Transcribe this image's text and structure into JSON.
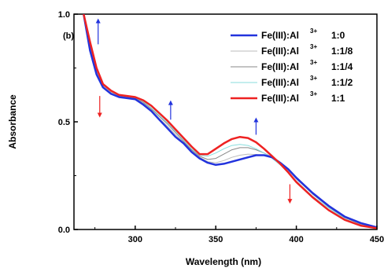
{
  "chart_data": {
    "type": "line",
    "panel_label": "(b)",
    "xlabel": "Wavelength (nm)",
    "ylabel": "Absorbance",
    "xlim": [
      262,
      450
    ],
    "ylim": [
      0.0,
      1.0
    ],
    "x_ticks": [
      300,
      350,
      400,
      450
    ],
    "x_tick_labels": [
      "300",
      "350",
      "400",
      "450"
    ],
    "y_ticks": [
      0.0,
      0.5,
      1.0
    ],
    "y_tick_labels": [
      "0.0",
      "0.5",
      "1.0"
    ],
    "legend_position": "top-right",
    "series": [
      {
        "name": "Fe(III):Al3+ 1:0",
        "legend_main": "Fe(III):Al",
        "legend_sup": "3+",
        "legend_ratio": "1:0",
        "color": "#2233dd",
        "width": 2.5,
        "x": [
          268,
          272,
          276,
          280,
          285,
          290,
          295,
          300,
          305,
          310,
          315,
          320,
          325,
          330,
          335,
          340,
          345,
          350,
          355,
          360,
          365,
          370,
          375,
          380,
          385,
          390,
          395,
          400,
          410,
          420,
          430,
          440,
          450
        ],
        "y": [
          1.0,
          0.83,
          0.72,
          0.66,
          0.63,
          0.615,
          0.61,
          0.605,
          0.58,
          0.55,
          0.51,
          0.47,
          0.43,
          0.4,
          0.36,
          0.33,
          0.31,
          0.3,
          0.305,
          0.315,
          0.325,
          0.335,
          0.345,
          0.345,
          0.335,
          0.31,
          0.28,
          0.24,
          0.17,
          0.11,
          0.06,
          0.03,
          0.01
        ]
      },
      {
        "name": "Fe(III):Al3+ 1:1/8",
        "legend_main": "Fe(III):Al",
        "legend_sup": "3+",
        "legend_ratio": "1:1/8",
        "color": "#bbbbbb",
        "width": 1,
        "x": [
          268,
          272,
          276,
          280,
          285,
          290,
          295,
          300,
          305,
          310,
          315,
          320,
          325,
          330,
          335,
          340,
          345,
          350,
          355,
          360,
          365,
          370,
          375,
          380,
          385,
          390,
          395,
          400,
          410,
          420,
          430,
          440,
          450
        ],
        "y": [
          1.0,
          0.84,
          0.73,
          0.665,
          0.635,
          0.618,
          0.613,
          0.607,
          0.585,
          0.555,
          0.515,
          0.48,
          0.44,
          0.405,
          0.365,
          0.335,
          0.315,
          0.31,
          0.32,
          0.335,
          0.345,
          0.35,
          0.348,
          0.343,
          0.333,
          0.31,
          0.28,
          0.24,
          0.17,
          0.11,
          0.06,
          0.03,
          0.01
        ]
      },
      {
        "name": "Fe(III):Al3+ 1:1/4",
        "legend_main": "Fe(III):Al",
        "legend_sup": "3+",
        "legend_ratio": "1:1/4",
        "color": "#888888",
        "width": 1,
        "x": [
          268,
          272,
          276,
          280,
          285,
          290,
          295,
          300,
          305,
          310,
          315,
          320,
          325,
          330,
          335,
          340,
          345,
          350,
          355,
          360,
          365,
          370,
          375,
          380,
          385,
          390,
          395,
          400,
          410,
          420,
          430,
          440,
          450
        ],
        "y": [
          1.0,
          0.85,
          0.74,
          0.67,
          0.64,
          0.62,
          0.615,
          0.61,
          0.59,
          0.56,
          0.525,
          0.49,
          0.45,
          0.41,
          0.37,
          0.34,
          0.325,
          0.33,
          0.35,
          0.37,
          0.38,
          0.38,
          0.37,
          0.355,
          0.335,
          0.31,
          0.275,
          0.235,
          0.165,
          0.105,
          0.055,
          0.025,
          0.01
        ]
      },
      {
        "name": "Fe(III):Al3+ 1:1/2",
        "legend_main": "Fe(III):Al",
        "legend_sup": "3+",
        "legend_ratio": "1:1/2",
        "color": "#88dddd",
        "width": 1,
        "x": [
          268,
          272,
          276,
          280,
          285,
          290,
          295,
          300,
          305,
          310,
          315,
          320,
          325,
          330,
          335,
          340,
          345,
          350,
          355,
          360,
          365,
          370,
          375,
          380,
          385,
          390,
          395,
          400,
          410,
          420,
          430,
          440,
          450
        ],
        "y": [
          1.0,
          0.86,
          0.745,
          0.672,
          0.642,
          0.622,
          0.617,
          0.612,
          0.595,
          0.565,
          0.53,
          0.495,
          0.455,
          0.415,
          0.375,
          0.345,
          0.34,
          0.355,
          0.375,
          0.39,
          0.395,
          0.39,
          0.375,
          0.355,
          0.33,
          0.3,
          0.265,
          0.225,
          0.155,
          0.1,
          0.05,
          0.02,
          0.008
        ]
      },
      {
        "name": "Fe(III):Al3+ 1:1",
        "legend_main": "Fe(III):Al",
        "legend_sup": "3+",
        "legend_ratio": "1:1",
        "color": "#ee2222",
        "width": 2.5,
        "x": [
          268,
          272,
          276,
          280,
          285,
          290,
          295,
          300,
          305,
          310,
          315,
          320,
          325,
          330,
          335,
          340,
          345,
          350,
          355,
          360,
          365,
          370,
          375,
          380,
          385,
          390,
          395,
          400,
          410,
          420,
          430,
          440,
          450
        ],
        "y": [
          1.0,
          0.87,
          0.75,
          0.675,
          0.645,
          0.625,
          0.62,
          0.615,
          0.6,
          0.575,
          0.54,
          0.505,
          0.465,
          0.425,
          0.385,
          0.35,
          0.35,
          0.375,
          0.4,
          0.42,
          0.43,
          0.425,
          0.405,
          0.375,
          0.34,
          0.305,
          0.265,
          0.22,
          0.15,
          0.09,
          0.045,
          0.018,
          0.006
        ]
      }
    ],
    "arrows": [
      {
        "x": 277,
        "y_from": 0.86,
        "y_to": 0.98,
        "color": "#2233dd"
      },
      {
        "x": 278,
        "y_from": 0.62,
        "y_to": 0.52,
        "color": "#ee2222"
      },
      {
        "x": 322,
        "y_from": 0.51,
        "y_to": 0.6,
        "color": "#2233dd"
      },
      {
        "x": 375,
        "y_from": 0.44,
        "y_to": 0.52,
        "color": "#2233dd"
      },
      {
        "x": 396,
        "y_from": 0.21,
        "y_to": 0.12,
        "color": "#ee2222"
      }
    ]
  }
}
